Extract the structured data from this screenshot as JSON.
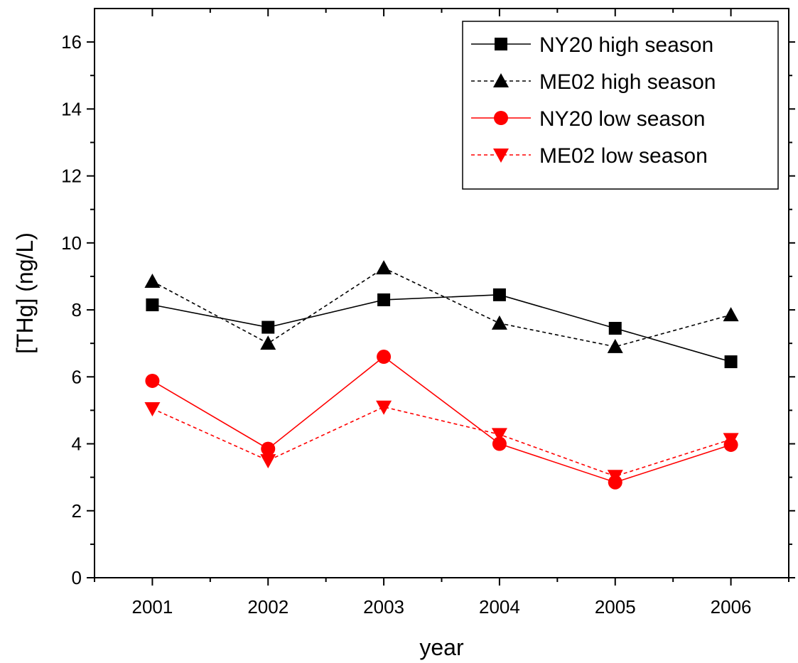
{
  "chart_data": {
    "type": "line",
    "title": "",
    "xlabel": "year",
    "ylabel": "[THg] (ng/L)",
    "x": [
      2001,
      2002,
      2003,
      2004,
      2005,
      2006
    ],
    "xlim": [
      2000.5,
      2006.5
    ],
    "ylim": [
      0,
      17
    ],
    "yticks": [
      0,
      2,
      4,
      6,
      8,
      10,
      12,
      14,
      16
    ],
    "grid": false,
    "legend_position": "top-right",
    "series": [
      {
        "name": "NY20 high season",
        "values": [
          8.15,
          7.48,
          8.3,
          8.45,
          7.45,
          6.45
        ],
        "color": "#000000",
        "dash": "solid",
        "marker": "square"
      },
      {
        "name": "ME02 high season",
        "values": [
          8.85,
          7.0,
          9.25,
          7.6,
          6.9,
          7.85
        ],
        "color": "#000000",
        "dash": "dashed",
        "marker": "triangle-up"
      },
      {
        "name": "NY20 low season",
        "values": [
          5.88,
          3.85,
          6.6,
          4.0,
          2.85,
          3.97
        ],
        "color": "#ff0000",
        "dash": "solid",
        "marker": "circle"
      },
      {
        "name": "ME02 low season",
        "values": [
          5.05,
          3.5,
          5.1,
          4.28,
          3.03,
          4.13
        ],
        "color": "#ff0000",
        "dash": "dashed",
        "marker": "triangle-down"
      }
    ]
  }
}
